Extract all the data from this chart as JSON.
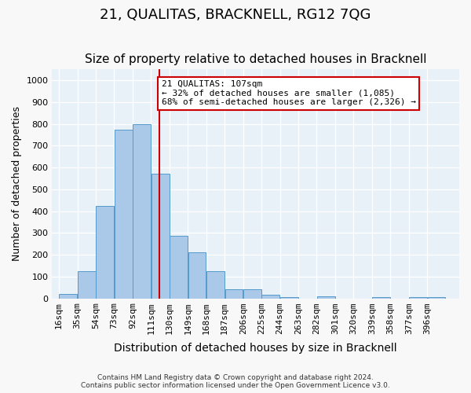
{
  "title": "21, QUALITAS, BRACKNELL, RG12 7QG",
  "subtitle": "Size of property relative to detached houses in Bracknell",
  "xlabel": "Distribution of detached houses by size in Bracknell",
  "ylabel": "Number of detached properties",
  "categories": [
    "16sqm",
    "35sqm",
    "54sqm",
    "73sqm",
    "92sqm",
    "111sqm",
    "130sqm",
    "149sqm",
    "168sqm",
    "187sqm",
    "206sqm",
    "225sqm",
    "244sqm",
    "263sqm",
    "282sqm",
    "301sqm",
    "320sqm",
    "339sqm",
    "358sqm",
    "377sqm",
    "396sqm"
  ],
  "values": [
    20,
    125,
    425,
    775,
    800,
    570,
    285,
    210,
    125,
    40,
    40,
    15,
    5,
    0,
    10,
    0,
    0,
    5,
    0,
    5,
    5
  ],
  "bar_color": "#aac8e8",
  "bar_edge_color": "#5599cc",
  "vline_x": 111,
  "vline_color": "#cc0000",
  "annotation_text": "21 QUALITAS: 107sqm\n← 32% of detached houses are smaller (1,085)\n68% of semi-detached houses are larger (2,326) →",
  "annotation_box_color": "#ffffff",
  "annotation_box_edge": "#cc0000",
  "ylim": [
    0,
    1050
  ],
  "yticks": [
    0,
    100,
    200,
    300,
    400,
    500,
    600,
    700,
    800,
    900,
    1000
  ],
  "background_color": "#e8f0f8",
  "grid_color": "#ffffff",
  "footer_line1": "Contains HM Land Registry data © Crown copyright and database right 2024.",
  "footer_line2": "Contains public sector information licensed under the Open Government Licence v3.0.",
  "bin_width": 19,
  "bin_starts": [
    7,
    26,
    45,
    64,
    83,
    102,
    121,
    140,
    159,
    178,
    197,
    216,
    235,
    254,
    273,
    292,
    311,
    330,
    349,
    368,
    387
  ],
  "title_fontsize": 13,
  "subtitle_fontsize": 11,
  "tick_fontsize": 8,
  "ylabel_fontsize": 9,
  "xlabel_fontsize": 10
}
